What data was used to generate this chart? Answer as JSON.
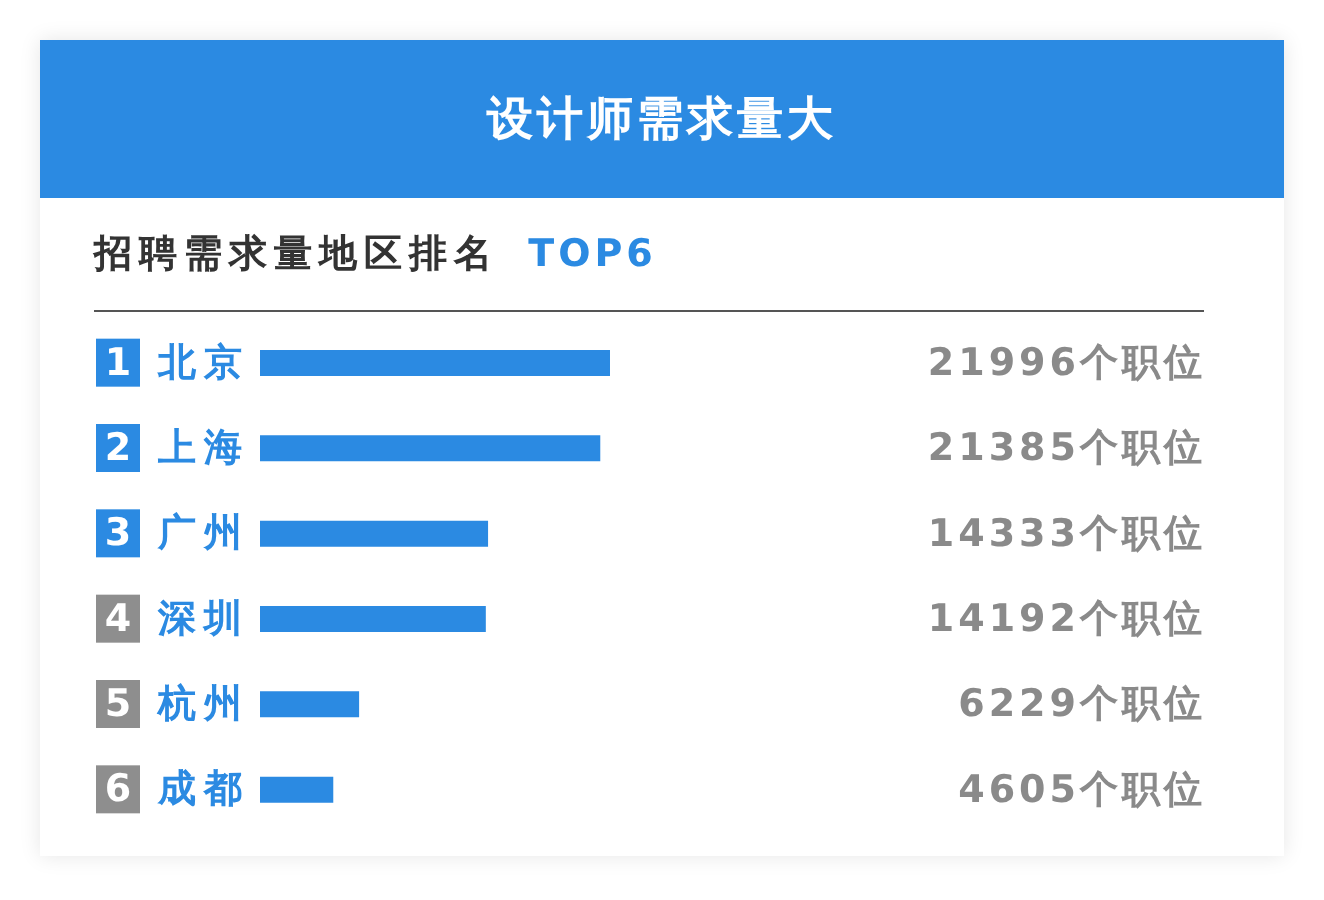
{
  "chart_data": {
    "type": "bar",
    "orientation": "horizontal",
    "title": "设计师需求量大",
    "subtitle": "招聘需求量地区排名 TOP6",
    "categories": [
      "1 北京",
      "2 上海",
      "3 广州",
      "4 深圳",
      "5 杭州",
      "6 成都"
    ],
    "values": [
      21996,
      21385,
      14333,
      14192,
      6229,
      4605
    ],
    "value_labels": [
      "21996个职位",
      "21385个职位",
      "14333个职位",
      "14192个职位",
      "6229个职位",
      "4605个职位"
    ],
    "color": "#2b8ae2",
    "tick_labels": "y"
  }
}
